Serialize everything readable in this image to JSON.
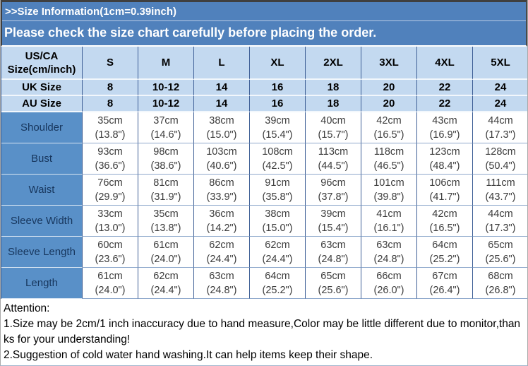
{
  "banner": {
    "line1": ">>Size Information(1cm=0.39inch)",
    "line2": "Please check the size chart carefully before placing the order."
  },
  "size_chart": {
    "header": {
      "corner": "US/CA Size(cm/inch)",
      "sizes": [
        "S",
        "M",
        "L",
        "XL",
        "2XL",
        "3XL",
        "4XL",
        "5XL"
      ]
    },
    "conversion_rows": [
      {
        "label": "UK Size",
        "values": [
          "8",
          "10-12",
          "14",
          "16",
          "18",
          "20",
          "22",
          "24"
        ]
      },
      {
        "label": "AU Size",
        "values": [
          "8",
          "10-12",
          "14",
          "16",
          "18",
          "20",
          "22",
          "24"
        ]
      }
    ],
    "measurement_rows": [
      {
        "label": "Shoulder",
        "values": [
          {
            "cm": "35cm",
            "inch": "(13.8\")"
          },
          {
            "cm": "37cm",
            "inch": "(14.6\")"
          },
          {
            "cm": "38cm",
            "inch": "(15.0\")"
          },
          {
            "cm": "39cm",
            "inch": "(15.4\")"
          },
          {
            "cm": "40cm",
            "inch": "(15.7\")"
          },
          {
            "cm": "42cm",
            "inch": "(16.5\")"
          },
          {
            "cm": "43cm",
            "inch": "(16.9\")"
          },
          {
            "cm": "44cm",
            "inch": "(17.3\")"
          }
        ]
      },
      {
        "label": "Bust",
        "values": [
          {
            "cm": "93cm",
            "inch": "(36.6\")"
          },
          {
            "cm": "98cm",
            "inch": "(38.6\")"
          },
          {
            "cm": "103cm",
            "inch": "(40.6\")"
          },
          {
            "cm": "108cm",
            "inch": "(42.5\")"
          },
          {
            "cm": "113cm",
            "inch": "(44.5\")"
          },
          {
            "cm": "118cm",
            "inch": "(46.5\")"
          },
          {
            "cm": "123cm",
            "inch": "(48.4\")"
          },
          {
            "cm": "128cm",
            "inch": "(50.4\")"
          }
        ]
      },
      {
        "label": "Waist",
        "values": [
          {
            "cm": "76cm",
            "inch": "(29.9\")"
          },
          {
            "cm": "81cm",
            "inch": "(31.9\")"
          },
          {
            "cm": "86cm",
            "inch": "(33.9\")"
          },
          {
            "cm": "91cm",
            "inch": "(35.8\")"
          },
          {
            "cm": "96cm",
            "inch": "(37.8\")"
          },
          {
            "cm": "101cm",
            "inch": "(39.8\")"
          },
          {
            "cm": "106cm",
            "inch": "(41.7\")"
          },
          {
            "cm": "111cm",
            "inch": "(43.7\")"
          }
        ]
      },
      {
        "label": "Sleeve Width",
        "values": [
          {
            "cm": "33cm",
            "inch": "(13.0\")"
          },
          {
            "cm": "35cm",
            "inch": "(13.8\")"
          },
          {
            "cm": "36cm",
            "inch": "(14.2\")"
          },
          {
            "cm": "38cm",
            "inch": "(15.0\")"
          },
          {
            "cm": "39cm",
            "inch": "(15.4\")"
          },
          {
            "cm": "41cm",
            "inch": "(16.1\")"
          },
          {
            "cm": "42cm",
            "inch": "(16.5\")"
          },
          {
            "cm": "44cm",
            "inch": "(17.3\")"
          }
        ]
      },
      {
        "label": "Sleeve Length",
        "values": [
          {
            "cm": "60cm",
            "inch": "(23.6\")"
          },
          {
            "cm": "61cm",
            "inch": "(24.0\")"
          },
          {
            "cm": "62cm",
            "inch": "(24.4\")"
          },
          {
            "cm": "62cm",
            "inch": "(24.4\")"
          },
          {
            "cm": "63cm",
            "inch": "(24.8\")"
          },
          {
            "cm": "63cm",
            "inch": "(24.8\")"
          },
          {
            "cm": "64cm",
            "inch": "(25.2\")"
          },
          {
            "cm": "65cm",
            "inch": "(25.6\")"
          }
        ]
      },
      {
        "label": "Length",
        "values": [
          {
            "cm": "61cm",
            "inch": "(24.0\")"
          },
          {
            "cm": "62cm",
            "inch": "(24.4\")"
          },
          {
            "cm": "63cm",
            "inch": "(24.8\")"
          },
          {
            "cm": "64cm",
            "inch": "(25.2\")"
          },
          {
            "cm": "65cm",
            "inch": "(25.6\")"
          },
          {
            "cm": "66cm",
            "inch": "(26.0\")"
          },
          {
            "cm": "67cm",
            "inch": "(26.4\")"
          },
          {
            "cm": "68cm",
            "inch": "(26.8\")"
          }
        ]
      }
    ]
  },
  "attention": {
    "heading": "Attention:",
    "notes": [
      "1.Size may be 2cm/1 inch inaccuracy due to hand measure,Color may be little different due to monitor,thanks for your understanding!",
      "2.Suggestion of cold water hand washing.It can help items keep their shape."
    ]
  },
  "colors": {
    "banner_bg": "#5081BC",
    "banner_text": "#FFFFFF",
    "table_header_bg": "#C3D9F0",
    "row_label_bg": "#5990C8",
    "row_label_text": "#17365D",
    "border_dark_blue": "#3E5F96",
    "outer_border_dark": "#3F3F3F"
  }
}
